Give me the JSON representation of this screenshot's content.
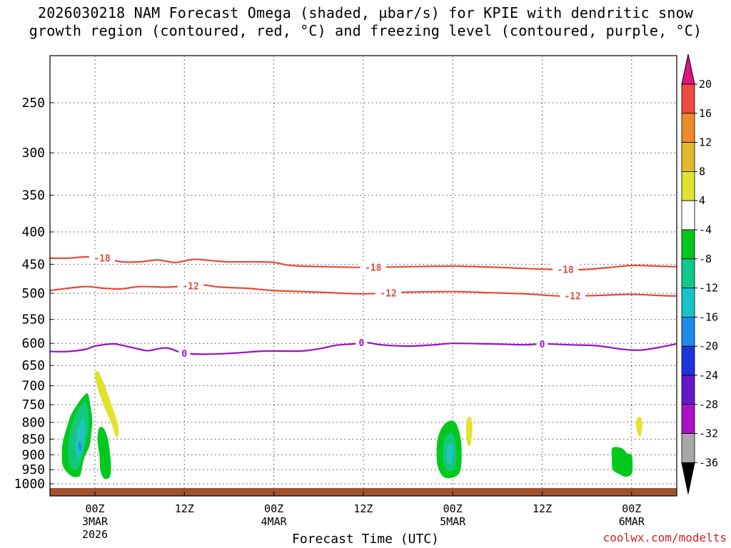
{
  "chart_data": {
    "type": "heatmap",
    "title_line1": "2026030218 NAM Forecast Omega (shaded, µbar/s) for KPIE with dendritic snow",
    "title_line2": "growth region (contoured, red, °C) and freezing level (contoured, purple, °C)",
    "xlabel": "Forecast Time (UTC)",
    "ylabel": "",
    "credit": "coolwx.com/modelts",
    "x_unit": "forecast hour",
    "xlim": [
      -5,
      65
    ],
    "ylim_hPa": [
      1025,
      200
    ],
    "y_ticks": [
      {
        "label": "250",
        "value": 250
      },
      {
        "label": "300",
        "value": 300
      },
      {
        "label": "350",
        "value": 350
      },
      {
        "label": "400",
        "value": 400
      },
      {
        "label": "450",
        "value": 450
      },
      {
        "label": "500",
        "value": 500
      },
      {
        "label": "550",
        "value": 550
      },
      {
        "label": "600",
        "value": 600
      },
      {
        "label": "650",
        "value": 650
      },
      {
        "label": "700",
        "value": 700
      },
      {
        "label": "750",
        "value": 750
      },
      {
        "label": "800",
        "value": 800
      },
      {
        "label": "850",
        "value": 850
      },
      {
        "label": "900",
        "value": 900
      },
      {
        "label": "950",
        "value": 950
      },
      {
        "label": "1000",
        "value": 1000
      }
    ],
    "x_ticks": [
      {
        "hour": 0,
        "lines": [
          "00Z",
          "3MAR",
          "2026"
        ]
      },
      {
        "hour": 10,
        "lines": [
          "12Z"
        ]
      },
      {
        "hour": 20,
        "lines": [
          "00Z",
          "4MAR"
        ]
      },
      {
        "hour": 30,
        "lines": [
          "12Z"
        ]
      },
      {
        "hour": 40,
        "lines": [
          "00Z",
          "5MAR"
        ]
      },
      {
        "hour": 50,
        "lines": [
          "12Z"
        ]
      },
      {
        "hour": 60,
        "lines": [
          "00Z",
          "6MAR"
        ]
      }
    ],
    "contours": [
      {
        "name": "minus18",
        "value": -18,
        "label": "-18",
        "color": "#e84a3a",
        "points": [
          [
            -5,
            440
          ],
          [
            -3,
            440
          ],
          [
            -1,
            438
          ],
          [
            1,
            440
          ],
          [
            3,
            446
          ],
          [
            5,
            446
          ],
          [
            7,
            443
          ],
          [
            9,
            447
          ],
          [
            11,
            442
          ],
          [
            13,
            444
          ],
          [
            15,
            446
          ],
          [
            18,
            446
          ],
          [
            20,
            447
          ],
          [
            22,
            452
          ],
          [
            26,
            454
          ],
          [
            30,
            455
          ],
          [
            35,
            454
          ],
          [
            40,
            453
          ],
          [
            45,
            455
          ],
          [
            50,
            458
          ],
          [
            54,
            459
          ],
          [
            57,
            456
          ],
          [
            60,
            452
          ],
          [
            63,
            453
          ],
          [
            65,
            454
          ]
        ],
        "label_hours": [
          0.8,
          31.1,
          52.6
        ]
      },
      {
        "name": "minus12",
        "value": -12,
        "label": "-12",
        "color": "#e84a3a",
        "points": [
          [
            -5,
            495
          ],
          [
            -3,
            491
          ],
          [
            -1,
            488
          ],
          [
            1,
            491
          ],
          [
            3,
            492
          ],
          [
            5,
            488
          ],
          [
            8,
            489
          ],
          [
            10,
            487
          ],
          [
            12,
            485
          ],
          [
            14,
            489
          ],
          [
            17,
            491
          ],
          [
            20,
            495
          ],
          [
            25,
            498
          ],
          [
            30,
            501
          ],
          [
            35,
            498
          ],
          [
            40,
            497
          ],
          [
            44,
            499
          ],
          [
            48,
            501
          ],
          [
            52,
            505
          ],
          [
            56,
            504
          ],
          [
            60,
            502
          ],
          [
            63,
            504
          ],
          [
            65,
            505
          ]
        ],
        "label_hours": [
          10.7,
          32.8,
          53.4
        ]
      },
      {
        "name": "freezing",
        "value": 0,
        "label": "0",
        "color": "#9a10c8",
        "points": [
          [
            -5,
            618
          ],
          [
            -3,
            618
          ],
          [
            -1,
            613
          ],
          [
            0,
            606
          ],
          [
            2,
            601
          ],
          [
            3,
            604
          ],
          [
            5,
            613
          ],
          [
            6,
            616
          ],
          [
            8,
            610
          ],
          [
            10,
            622
          ],
          [
            13,
            624
          ],
          [
            16,
            621
          ],
          [
            19,
            617
          ],
          [
            23,
            617
          ],
          [
            25,
            612
          ],
          [
            27,
            604
          ],
          [
            29,
            601
          ],
          [
            30,
            597
          ],
          [
            32,
            603
          ],
          [
            35,
            606
          ],
          [
            38,
            603
          ],
          [
            40,
            600
          ],
          [
            44,
            601
          ],
          [
            48,
            603
          ],
          [
            50,
            601
          ],
          [
            53,
            603
          ],
          [
            56,
            605
          ],
          [
            59,
            613
          ],
          [
            61,
            615
          ],
          [
            63,
            609
          ],
          [
            65,
            601
          ]
        ],
        "label_hours": [
          10.0,
          29.8,
          50.0
        ]
      }
    ],
    "omega_regions": [
      {
        "name": "core-3mar-green",
        "value_range": "-8 to -4",
        "color": "#00c81c",
        "points": [
          [
            -3.7,
            900
          ],
          [
            -3.6,
            860
          ],
          [
            -3.2,
            820
          ],
          [
            -2.7,
            780
          ],
          [
            -2.0,
            750
          ],
          [
            -1.2,
            725
          ],
          [
            -0.8,
            720
          ],
          [
            -0.6,
            740
          ],
          [
            -0.3,
            790
          ],
          [
            -0.4,
            830
          ],
          [
            -0.6,
            870
          ],
          [
            -1.2,
            910
          ],
          [
            -1.5,
            950
          ],
          [
            -1.7,
            972
          ],
          [
            -2.4,
            975
          ],
          [
            -3.1,
            960
          ],
          [
            -3.6,
            935
          ]
        ]
      },
      {
        "name": "core-3mar-teal",
        "value_range": "-12 to -8",
        "color": "#12c87c",
        "points": [
          [
            -3.0,
            900
          ],
          [
            -2.9,
            850
          ],
          [
            -2.5,
            800
          ],
          [
            -1.8,
            760
          ],
          [
            -1.1,
            740
          ],
          [
            -0.8,
            760
          ],
          [
            -0.7,
            810
          ],
          [
            -1.0,
            860
          ],
          [
            -1.4,
            905
          ],
          [
            -1.8,
            940
          ],
          [
            -2.3,
            950
          ],
          [
            -2.8,
            935
          ]
        ]
      },
      {
        "name": "core-3mar-cyan",
        "value_range": "-16 to -12",
        "color": "#20c4c0",
        "points": [
          [
            -2.2,
            870
          ],
          [
            -2.0,
            830
          ],
          [
            -1.6,
            800
          ],
          [
            -1.3,
            790
          ],
          [
            -1.1,
            810
          ],
          [
            -1.2,
            850
          ],
          [
            -1.5,
            890
          ],
          [
            -1.8,
            910
          ],
          [
            -2.1,
            900
          ]
        ]
      },
      {
        "name": "core-3mar-blue",
        "value_range": "-20 to -16",
        "color": "#2090e0",
        "points": [
          [
            -1.8,
            880
          ],
          [
            -1.8,
            860
          ],
          [
            -1.6,
            858
          ],
          [
            -1.5,
            875
          ],
          [
            -1.6,
            890
          ]
        ]
      },
      {
        "name": "side-3mar-green",
        "value_range": "-8 to -4",
        "color": "#00c81c",
        "points": [
          [
            0.4,
            820
          ],
          [
            0.9,
            815
          ],
          [
            1.4,
            845
          ],
          [
            1.7,
            900
          ],
          [
            1.8,
            950
          ],
          [
            1.6,
            978
          ],
          [
            1.0,
            980
          ],
          [
            0.6,
            950
          ],
          [
            0.5,
            900
          ],
          [
            0.3,
            860
          ]
        ]
      },
      {
        "name": "upper-3mar-yellow",
        "value_range": "4 to 8",
        "color": "#e2e22e",
        "points": [
          [
            0.0,
            670
          ],
          [
            0.4,
            665
          ],
          [
            1.1,
            700
          ],
          [
            2.0,
            760
          ],
          [
            2.6,
            810
          ],
          [
            2.6,
            840
          ],
          [
            2.3,
            840
          ],
          [
            1.8,
            800
          ],
          [
            1.1,
            760
          ],
          [
            0.5,
            720
          ],
          [
            0.1,
            690
          ]
        ]
      },
      {
        "name": "core-5mar-green",
        "value_range": "-8 to -4",
        "color": "#00c81c",
        "points": [
          [
            38.3,
            850
          ],
          [
            38.7,
            820
          ],
          [
            39.3,
            800
          ],
          [
            40.0,
            795
          ],
          [
            40.5,
            810
          ],
          [
            40.9,
            850
          ],
          [
            41.0,
            900
          ],
          [
            40.9,
            945
          ],
          [
            40.5,
            970
          ],
          [
            39.5,
            980
          ],
          [
            38.8,
            970
          ],
          [
            38.3,
            935
          ],
          [
            38.2,
            890
          ]
        ]
      },
      {
        "name": "core-5mar-teal",
        "value_range": "-12 to -8",
        "color": "#12c87c",
        "points": [
          [
            38.9,
            880
          ],
          [
            39.1,
            850
          ],
          [
            39.6,
            830
          ],
          [
            40.1,
            840
          ],
          [
            40.4,
            880
          ],
          [
            40.4,
            920
          ],
          [
            40.1,
            950
          ],
          [
            39.5,
            955
          ],
          [
            39.0,
            930
          ]
        ]
      },
      {
        "name": "core-5mar-cyan",
        "value_range": "-16 to -12",
        "color": "#20c4c0",
        "points": [
          [
            39.3,
            890
          ],
          [
            39.5,
            865
          ],
          [
            39.9,
            868
          ],
          [
            40.0,
            900
          ],
          [
            39.8,
            930
          ],
          [
            39.4,
            925
          ]
        ]
      },
      {
        "name": "yellow-5mar",
        "value_range": "4 to 8",
        "color": "#e2e22e",
        "points": [
          [
            41.6,
            790
          ],
          [
            42.0,
            785
          ],
          [
            42.2,
            810
          ],
          [
            42.1,
            850
          ],
          [
            41.9,
            870
          ],
          [
            41.6,
            860
          ],
          [
            41.5,
            820
          ]
        ]
      },
      {
        "name": "green-6mar",
        "value_range": "-8 to -4",
        "color": "#00c81c",
        "points": [
          [
            57.8,
            880
          ],
          [
            58.3,
            875
          ],
          [
            59.0,
            880
          ],
          [
            59.5,
            895
          ],
          [
            60.0,
            900
          ],
          [
            60.1,
            930
          ],
          [
            60.0,
            965
          ],
          [
            59.3,
            975
          ],
          [
            58.6,
            965
          ],
          [
            57.9,
            950
          ],
          [
            57.8,
            915
          ]
        ]
      },
      {
        "name": "yellow-6mar",
        "value_range": "4 to 8",
        "color": "#e2e22e",
        "points": [
          [
            60.6,
            790
          ],
          [
            61.0,
            785
          ],
          [
            61.2,
            810
          ],
          [
            61.0,
            840
          ],
          [
            60.7,
            835
          ],
          [
            60.5,
            810
          ]
        ]
      }
    ],
    "surface_color": "#a0522d",
    "colorbar": {
      "segments": [
        {
          "from": -36,
          "to": -32,
          "color": "#a8a8a8"
        },
        {
          "from": -32,
          "to": -28,
          "color": "#aa10c8"
        },
        {
          "from": -28,
          "to": -24,
          "color": "#6418c8"
        },
        {
          "from": -24,
          "to": -20,
          "color": "#1c34e0"
        },
        {
          "from": -20,
          "to": -16,
          "color": "#1c8cec"
        },
        {
          "from": -16,
          "to": -12,
          "color": "#18c2cc"
        },
        {
          "from": -12,
          "to": -8,
          "color": "#10c890"
        },
        {
          "from": -8,
          "to": -4,
          "color": "#00c81c"
        },
        {
          "from": -4,
          "to": 4,
          "color": "#ffffff"
        },
        {
          "from": 4,
          "to": 8,
          "color": "#e2e22e"
        },
        {
          "from": 8,
          "to": 12,
          "color": "#e2b82e"
        },
        {
          "from": 12,
          "to": 16,
          "color": "#ee8c28"
        },
        {
          "from": 16,
          "to": 20,
          "color": "#ee4a40"
        }
      ],
      "top_arrow_color": "#e0147c",
      "bottom_arrow_color": "#000000",
      "ticks": [
        "20",
        "16",
        "12",
        "8",
        "4",
        "-4",
        "-8",
        "-12",
        "-16",
        "-20",
        "-24",
        "-28",
        "-32",
        "-36"
      ]
    }
  }
}
